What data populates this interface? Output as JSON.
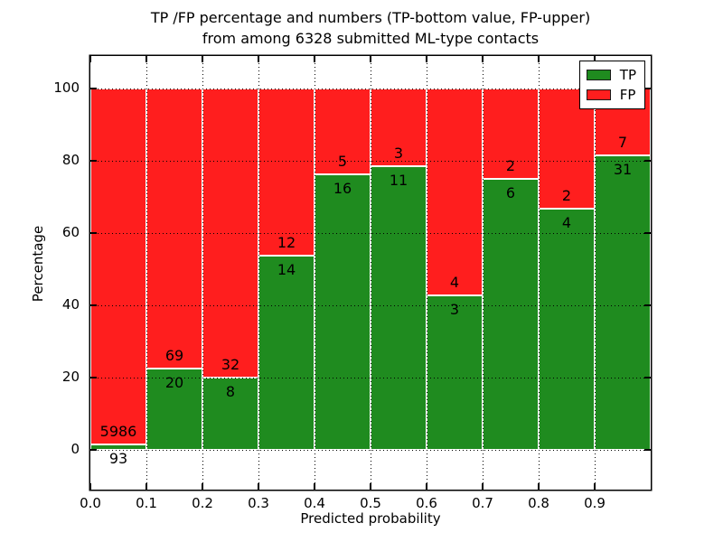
{
  "figure": {
    "title_line1": "TP /FP percentage and numbers (TP-bottom value, FP-upper)",
    "title_line2": "from among 6328 submitted ML-type contacts",
    "xlabel": "Predicted probability",
    "ylabel": "Percentage"
  },
  "legend": {
    "position": "upper-right",
    "items": [
      {
        "label": "TP",
        "color": "#1f8b1f"
      },
      {
        "label": "FP",
        "color": "#ff1e1e"
      }
    ]
  },
  "chart_data": {
    "type": "bar",
    "subtype": "stacked-percentage",
    "title": "TP /FP percentage and numbers (TP-bottom value, FP-upper)\nfrom among 6328 submitted ML-type contacts",
    "xlabel": "Predicted probability",
    "ylabel": "Percentage",
    "total_contacts": 6328,
    "bin_edges": [
      0.0,
      0.1,
      0.2,
      0.3,
      0.4,
      0.5,
      0.6,
      0.7,
      0.8,
      0.9,
      1.0
    ],
    "series": [
      {
        "name": "TP",
        "color": "#1f8b1f",
        "values": [
          93,
          20,
          8,
          14,
          16,
          11,
          3,
          6,
          4,
          31
        ]
      },
      {
        "name": "FP",
        "color": "#ff1e1e",
        "values": [
          5986,
          69,
          32,
          12,
          5,
          3,
          4,
          2,
          2,
          7
        ]
      }
    ],
    "tp_percent_by_bin": [
      1.53,
      22.47,
      20.0,
      53.85,
      76.19,
      78.57,
      42.86,
      75.0,
      66.67,
      81.58
    ],
    "xticks": [
      "0.0",
      "0.1",
      "0.2",
      "0.3",
      "0.4",
      "0.5",
      "0.6",
      "0.7",
      "0.8",
      "0.9"
    ],
    "yticks": [
      0,
      20,
      40,
      60,
      80,
      100
    ],
    "xlim": [
      0,
      1
    ],
    "ylim": [
      -11,
      109
    ],
    "grid": "dotted-black-above-bars",
    "bar_edge_color": "#ffffff",
    "legend_position": "upper right"
  }
}
